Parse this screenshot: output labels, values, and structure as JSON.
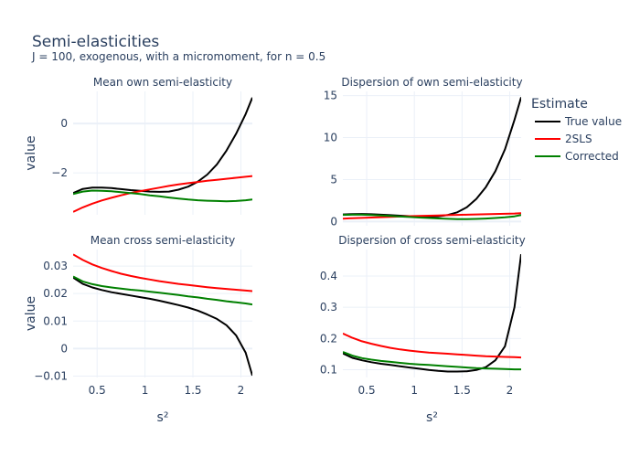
{
  "title": "Semi-elasticities",
  "subtitle": "J = 100, exogenous, with a micromoment,  for n = 0.5",
  "legend": {
    "title": "Estimate",
    "position": "right"
  },
  "colors": {
    "True value": "#000000",
    "2SLS": "#ff0000",
    "Corrected": "#008000"
  },
  "chart_data": [
    {
      "type": "line",
      "title": "Mean own semi-elasticity",
      "xlabel": "",
      "ylabel": "value",
      "xlim": [
        0.25,
        2.12
      ],
      "ylim": [
        -3.7,
        1.3
      ],
      "xticks": [],
      "yticks": [
        0,
        -2
      ],
      "ytick_labels": [
        "0",
        "−2"
      ],
      "x": [
        0.25,
        0.35,
        0.45,
        0.55,
        0.65,
        0.75,
        0.85,
        0.95,
        1.05,
        1.15,
        1.25,
        1.35,
        1.45,
        1.55,
        1.65,
        1.75,
        1.85,
        1.95,
        2.05,
        2.12
      ],
      "series": [
        {
          "name": "True value",
          "values": [
            -2.82,
            -2.65,
            -2.6,
            -2.6,
            -2.62,
            -2.66,
            -2.7,
            -2.73,
            -2.76,
            -2.77,
            -2.76,
            -2.68,
            -2.56,
            -2.36,
            -2.07,
            -1.66,
            -1.1,
            -0.42,
            0.38,
            1.05
          ]
        },
        {
          "name": "2SLS",
          "values": [
            -3.58,
            -3.4,
            -3.25,
            -3.12,
            -3.01,
            -2.91,
            -2.82,
            -2.74,
            -2.67,
            -2.6,
            -2.53,
            -2.47,
            -2.42,
            -2.37,
            -2.32,
            -2.28,
            -2.24,
            -2.2,
            -2.16,
            -2.13
          ]
        },
        {
          "name": "Corrected",
          "values": [
            -2.86,
            -2.76,
            -2.72,
            -2.73,
            -2.75,
            -2.78,
            -2.82,
            -2.86,
            -2.91,
            -2.95,
            -3.0,
            -3.04,
            -3.08,
            -3.11,
            -3.13,
            -3.14,
            -3.15,
            -3.14,
            -3.11,
            -3.08
          ]
        }
      ]
    },
    {
      "type": "line",
      "title": "Dispersion of own semi-elasticity",
      "xlabel": "",
      "ylabel": "",
      "xlim": [
        0.25,
        2.12
      ],
      "ylim": [
        -0.5,
        15.5
      ],
      "xticks": [],
      "yticks": [
        0,
        5,
        10,
        15
      ],
      "ytick_labels": [
        "0",
        "5",
        "10",
        "15"
      ],
      "x": [
        0.25,
        0.35,
        0.45,
        0.55,
        0.65,
        0.75,
        0.85,
        0.95,
        1.05,
        1.15,
        1.25,
        1.35,
        1.45,
        1.55,
        1.65,
        1.75,
        1.85,
        1.95,
        2.05,
        2.12
      ],
      "series": [
        {
          "name": "True value",
          "values": [
            0.85,
            0.88,
            0.9,
            0.87,
            0.82,
            0.76,
            0.7,
            0.64,
            0.6,
            0.58,
            0.62,
            0.78,
            1.1,
            1.7,
            2.7,
            4.1,
            6.0,
            8.6,
            12.1,
            14.8
          ]
        },
        {
          "name": "2SLS",
          "values": [
            0.35,
            0.4,
            0.44,
            0.48,
            0.52,
            0.56,
            0.6,
            0.64,
            0.67,
            0.7,
            0.73,
            0.76,
            0.79,
            0.82,
            0.85,
            0.87,
            0.9,
            0.93,
            0.96,
            1.0
          ]
        },
        {
          "name": "Corrected",
          "values": [
            0.8,
            0.82,
            0.82,
            0.78,
            0.72,
            0.66,
            0.6,
            0.54,
            0.48,
            0.42,
            0.37,
            0.33,
            0.3,
            0.3,
            0.32,
            0.36,
            0.42,
            0.5,
            0.62,
            0.78
          ]
        }
      ]
    },
    {
      "type": "line",
      "title": "Mean cross semi-elasticity",
      "xlabel": "s²",
      "ylabel": "value",
      "xlim": [
        0.25,
        2.12
      ],
      "ylim": [
        -0.0105,
        0.036
      ],
      "xticks": [
        0.5,
        1,
        1.5,
        2
      ],
      "xtick_labels": [
        "0.5",
        "1",
        "1.5",
        "2"
      ],
      "yticks": [
        0.03,
        0.02,
        0.01,
        0,
        -0.01
      ],
      "ytick_labels": [
        "0.03",
        "0.02",
        "0.01",
        "0",
        "−0.01"
      ],
      "x": [
        0.25,
        0.35,
        0.45,
        0.55,
        0.65,
        0.75,
        0.85,
        0.95,
        1.05,
        1.15,
        1.25,
        1.35,
        1.45,
        1.55,
        1.65,
        1.75,
        1.85,
        1.95,
        2.05,
        2.12
      ],
      "series": [
        {
          "name": "True value",
          "values": [
            0.0258,
            0.0235,
            0.0222,
            0.0213,
            0.0205,
            0.0199,
            0.0193,
            0.0187,
            0.0181,
            0.0174,
            0.0166,
            0.0158,
            0.0149,
            0.0138,
            0.0124,
            0.0108,
            0.0085,
            0.0048,
            -0.0015,
            -0.0098
          ]
        },
        {
          "name": "2SLS",
          "values": [
            0.0342,
            0.0322,
            0.0306,
            0.0293,
            0.0282,
            0.0272,
            0.0264,
            0.0257,
            0.0251,
            0.0245,
            0.024,
            0.0235,
            0.0231,
            0.0227,
            0.0223,
            0.022,
            0.0217,
            0.0214,
            0.0211,
            0.0209
          ]
        },
        {
          "name": "Corrected",
          "values": [
            0.0262,
            0.0244,
            0.0234,
            0.0227,
            0.0222,
            0.0218,
            0.0214,
            0.0211,
            0.0207,
            0.0203,
            0.0199,
            0.0195,
            0.019,
            0.0186,
            0.0181,
            0.0177,
            0.0172,
            0.0168,
            0.0164,
            0.016
          ]
        }
      ]
    },
    {
      "type": "line",
      "title": "Dispersion of cross semi-elasticity",
      "xlabel": "s²",
      "ylabel": "",
      "xlim": [
        0.25,
        2.12
      ],
      "ylim": [
        0.075,
        0.485
      ],
      "xticks": [
        0.5,
        1,
        1.5,
        2
      ],
      "xtick_labels": [
        "0.5",
        "1",
        "1.5",
        "2"
      ],
      "yticks": [
        0.4,
        0.3,
        0.2,
        0.1
      ],
      "ytick_labels": [
        "0.4",
        "0.3",
        "0.2",
        "0.1"
      ],
      "x": [
        0.25,
        0.35,
        0.45,
        0.55,
        0.65,
        0.75,
        0.85,
        0.95,
        1.05,
        1.15,
        1.25,
        1.35,
        1.45,
        1.55,
        1.65,
        1.75,
        1.85,
        1.95,
        2.05,
        2.12
      ],
      "series": [
        {
          "name": "True value",
          "values": [
            0.152,
            0.138,
            0.13,
            0.124,
            0.119,
            0.115,
            0.111,
            0.107,
            0.103,
            0.099,
            0.096,
            0.094,
            0.094,
            0.095,
            0.099,
            0.108,
            0.13,
            0.175,
            0.3,
            0.47
          ]
        },
        {
          "name": "2SLS",
          "values": [
            0.216,
            0.202,
            0.191,
            0.183,
            0.176,
            0.17,
            0.165,
            0.161,
            0.158,
            0.155,
            0.153,
            0.151,
            0.149,
            0.147,
            0.145,
            0.143,
            0.142,
            0.141,
            0.14,
            0.139
          ]
        },
        {
          "name": "Corrected",
          "values": [
            0.157,
            0.145,
            0.137,
            0.132,
            0.128,
            0.125,
            0.122,
            0.119,
            0.117,
            0.115,
            0.113,
            0.111,
            0.109,
            0.107,
            0.105,
            0.104,
            0.103,
            0.102,
            0.101,
            0.101
          ]
        }
      ]
    }
  ]
}
